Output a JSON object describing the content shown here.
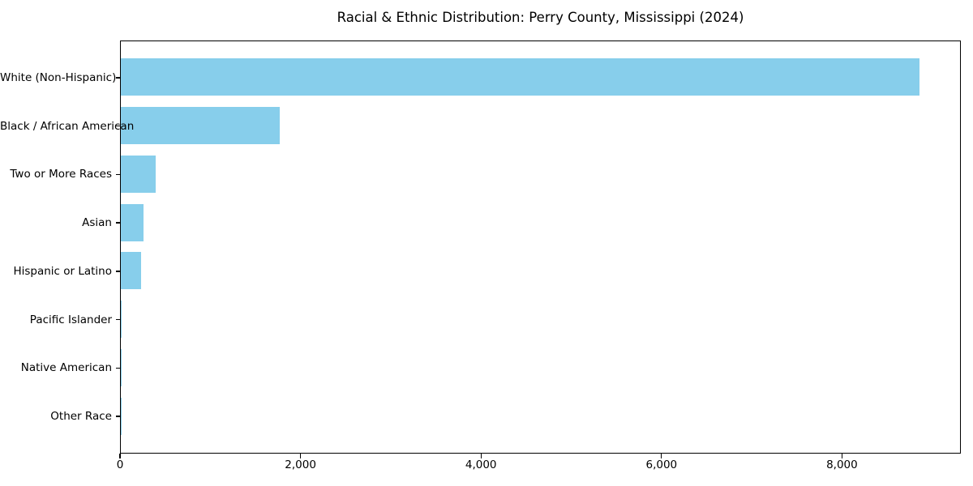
{
  "title": "Racial & Ethnic Distribution: Perry County, Mississippi (2024)",
  "chart_data": {
    "type": "bar",
    "orientation": "horizontal",
    "title": "Racial & Ethnic Distribution: Perry County, Mississippi (2024)",
    "categories": [
      "White (Non-Hispanic)",
      "Black / African American",
      "Two or More Races",
      "Asian",
      "Hispanic or Latino",
      "Pacific Islander",
      "Native American",
      "Other Race"
    ],
    "values": [
      8851,
      1765,
      385,
      250,
      225,
      13,
      5,
      3
    ],
    "xlabel": "",
    "ylabel": "",
    "xlim": [
      0,
      9290
    ],
    "x_ticks": [
      0,
      2000,
      4000,
      6000,
      8000
    ],
    "x_tick_labels": [
      "0",
      "2,000",
      "4,000",
      "6,000",
      "8,000"
    ],
    "bar_color": "#87ceeb",
    "background_color": "#ffffff",
    "spine_color": "#000000",
    "grid": false,
    "legend": false
  }
}
